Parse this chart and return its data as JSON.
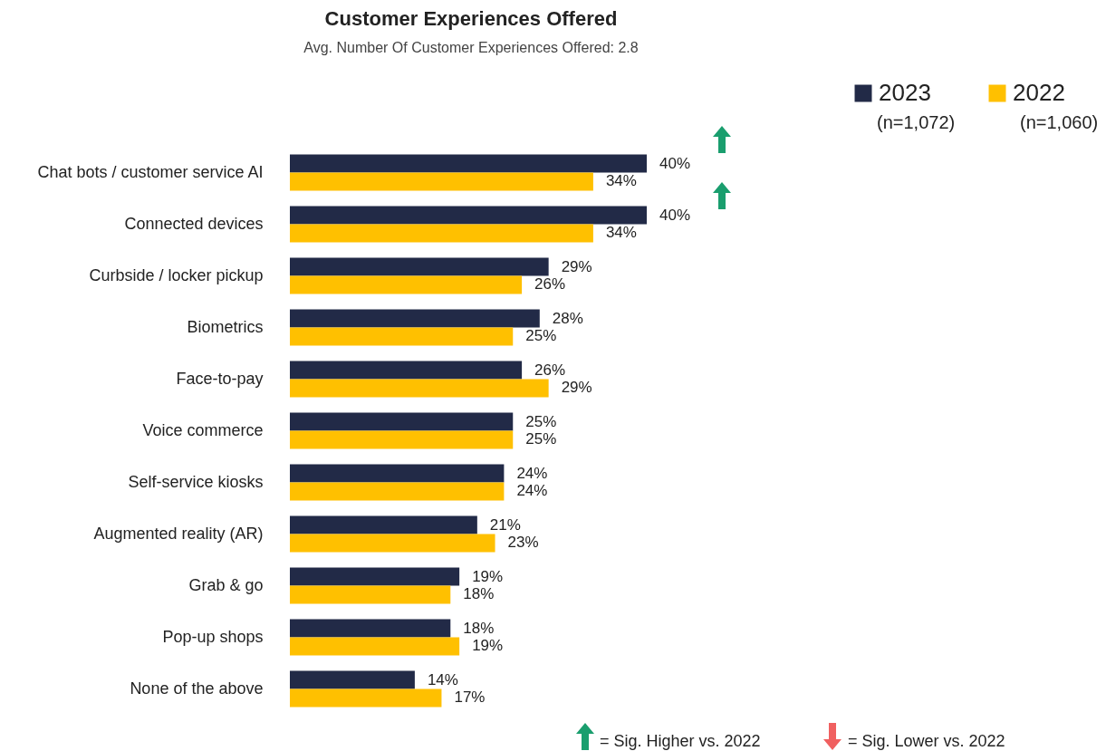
{
  "chart_data": {
    "type": "bar",
    "orientation": "horizontal",
    "title": "Customer Experiences Offered",
    "subtitle": "Avg. Number Of Customer Experiences Offered: 2.8",
    "categories": [
      "Chat bots / customer service AI",
      "Connected devices",
      "Curbside / locker pickup",
      "Biometrics",
      "Face-to-pay",
      "Voice commerce",
      "Self-service kiosks",
      "Augmented reality (AR)",
      "Grab & go",
      "Pop-up shops",
      "None of the above"
    ],
    "series": [
      {
        "name": "2023",
        "color": "#222a47",
        "values": [
          40,
          40,
          29,
          28,
          26,
          25,
          24,
          21,
          19,
          18,
          14
        ],
        "value_labels": [
          "40%",
          "40%",
          "29%",
          "28%",
          "26%",
          "25%",
          "24%",
          "21%",
          "19%",
          "18%",
          "14%"
        ]
      },
      {
        "name": "2022",
        "color": "#ffc000",
        "values": [
          34,
          34,
          26,
          25,
          29,
          25,
          24,
          23,
          18,
          19,
          17
        ],
        "value_labels": [
          "34%",
          "34%",
          "26%",
          "25%",
          "29%",
          "25%",
          "24%",
          "23%",
          "18%",
          "19%",
          "17%"
        ]
      }
    ],
    "legend": "top right",
    "annotations": [
      "(n=1,072)",
      "(n=1,060)",
      "= Sig. Higher vs. 2022",
      "= Sig. Lower vs. 2022"
    ]
  }
}
